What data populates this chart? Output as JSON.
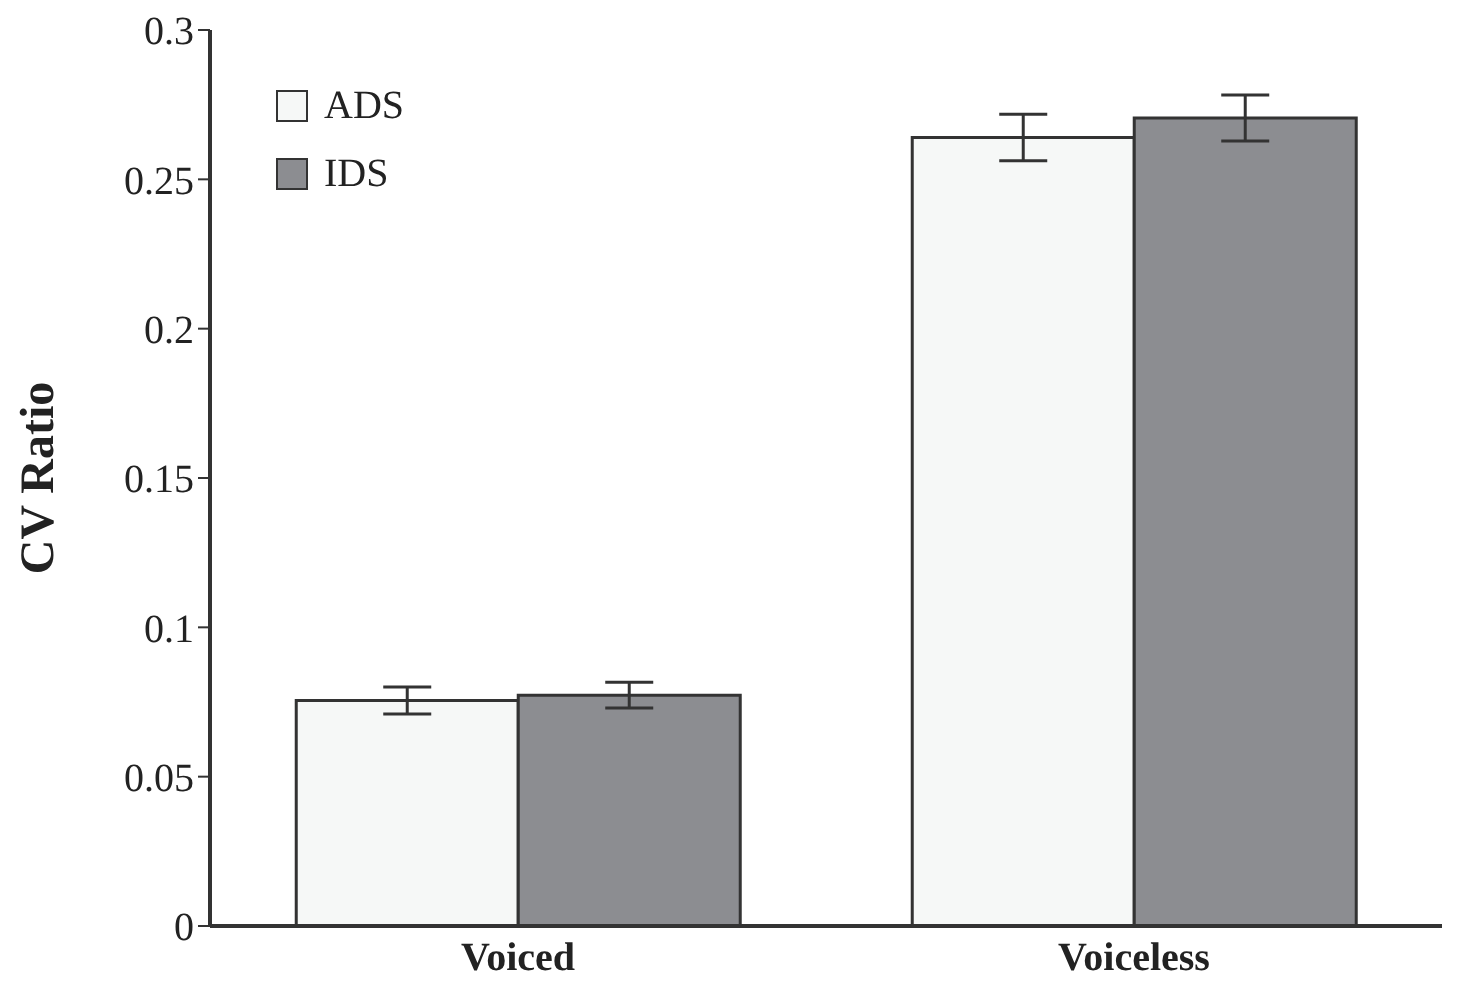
{
  "chart_data": {
    "type": "bar",
    "ylabel": "CV Ratio",
    "categories": [
      "Voiced",
      "Voiceless"
    ],
    "series": [
      {
        "name": "ADS",
        "color": "#f6f8f7",
        "values": [
          0.0755,
          0.264
        ],
        "errors": [
          0.0045,
          0.0078
        ]
      },
      {
        "name": "IDS",
        "color": "#8c8d91",
        "values": [
          0.0773,
          0.2705
        ],
        "errors": [
          0.0043,
          0.0077
        ]
      }
    ],
    "ylim": [
      0,
      0.3
    ],
    "yticks": [
      0,
      0.05,
      0.1,
      0.15,
      0.2,
      0.25,
      0.3
    ],
    "grid": false,
    "legend": "top left"
  }
}
